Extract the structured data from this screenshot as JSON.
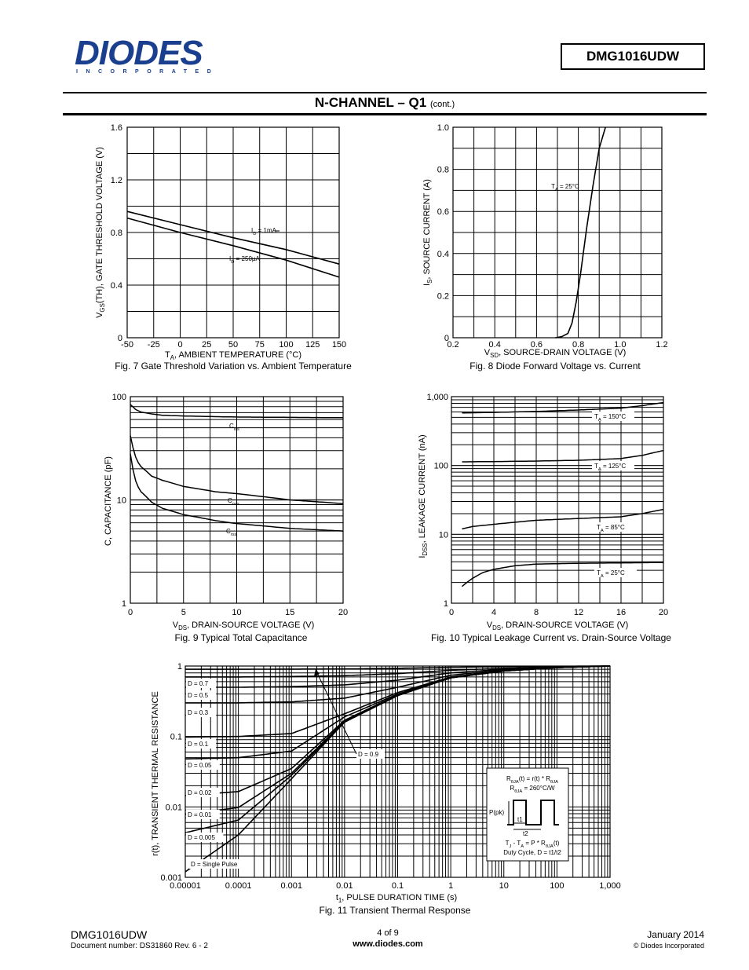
{
  "header": {
    "logo_text": "DIODES",
    "logo_sub": "INCORPORATED",
    "part_number": "DMG1016UDW"
  },
  "section": {
    "title": "N-CHANNEL – Q1",
    "suffix": "(cont.)"
  },
  "footer": {
    "part": "DMG1016UDW",
    "document": "Document number: DS31860 Rev. 6 - 2",
    "page": "4 of 9",
    "website": "www.diodes.com",
    "date": "January 2014",
    "copyright": "© Diodes Incorporated"
  },
  "chart_data": [
    {
      "id": "fig7",
      "type": "line",
      "caption": "Fig. 7 Gate Threshold Variation vs. Ambient Temperature",
      "xlabel": "T_A, AMBIENT TEMPERATURE (°C)",
      "ylabel": "V_GS(TH), GATE THRESHOLD VOLTAGE (V)",
      "xlim": [
        -50,
        150
      ],
      "ylim": [
        0,
        1.6
      ],
      "x_ticks": [
        "-50",
        "-25",
        "0",
        "25",
        "50",
        "75",
        "100",
        "125",
        "150"
      ],
      "y_ticks": [
        "0",
        "0.4",
        "0.8",
        "1.2",
        "1.6"
      ],
      "series": [
        {
          "name": "I_D = 1mA",
          "x": [
            -50,
            0,
            50,
            100,
            150
          ],
          "y": [
            0.96,
            0.86,
            0.76,
            0.67,
            0.56
          ]
        },
        {
          "name": "I_D = 250µA",
          "x": [
            -50,
            0,
            50,
            100,
            150
          ],
          "y": [
            0.91,
            0.8,
            0.7,
            0.59,
            0.46
          ]
        }
      ]
    },
    {
      "id": "fig8",
      "type": "line",
      "caption": "Fig. 8 Diode Forward Voltage vs. Current",
      "xlabel": "V_SD, SOURCE-DRAIN VOLTAGE (V)",
      "ylabel": "I_S, SOURCE CURRENT (A)",
      "xlim": [
        0.2,
        1.2
      ],
      "ylim": [
        0,
        1.0
      ],
      "x_ticks": [
        "0.2",
        "0.4",
        "0.6",
        "0.8",
        "1.0",
        "1.2"
      ],
      "y_ticks": [
        "0",
        "0.2",
        "0.4",
        "0.6",
        "0.8",
        "1.0"
      ],
      "series": [
        {
          "name": "T_A = 25°C",
          "x": [
            0.69,
            0.72,
            0.75,
            0.77,
            0.79,
            0.81,
            0.84,
            0.87,
            0.9,
            0.93
          ],
          "y": [
            0.0,
            0.005,
            0.02,
            0.07,
            0.17,
            0.3,
            0.52,
            0.72,
            0.9,
            1.0
          ]
        }
      ]
    },
    {
      "id": "fig9",
      "type": "line",
      "caption": "Fig. 9 Typical Total Capacitance",
      "xlabel": "V_DS, DRAIN-SOURCE VOLTAGE (V)",
      "ylabel": "C, CAPACITANCE (pF)",
      "xscale": "linear",
      "yscale": "log",
      "xlim": [
        0,
        20
      ],
      "ylim": [
        1,
        100
      ],
      "x_ticks": [
        "0",
        "5",
        "10",
        "15",
        "20"
      ],
      "y_ticks": [
        "1",
        "10",
        "100"
      ],
      "series": [
        {
          "name": "C_iss",
          "x": [
            0,
            0.5,
            1,
            2,
            3,
            5,
            8,
            10,
            15,
            20
          ],
          "y": [
            84,
            75,
            71,
            68,
            66,
            65,
            64,
            63.5,
            63,
            62.5
          ]
        },
        {
          "name": "C_oss",
          "x": [
            0,
            0.3,
            0.6,
            1,
            2,
            3,
            5,
            8,
            10,
            15,
            20
          ],
          "y": [
            42,
            30,
            24,
            21,
            17,
            15.5,
            13.5,
            12,
            11.5,
            10,
            9.2
          ]
        },
        {
          "name": "C_rss",
          "x": [
            0,
            0.3,
            0.6,
            1,
            2,
            3,
            5,
            8,
            10,
            15,
            20
          ],
          "y": [
            28,
            18,
            14,
            12,
            9.5,
            8.3,
            7.2,
            6.3,
            5.9,
            5.3,
            5.0
          ]
        }
      ]
    },
    {
      "id": "fig10",
      "type": "line",
      "caption": "Fig. 10 Typical Leakage Current vs. Drain-Source Voltage",
      "xlabel": "V_DS, DRAIN-SOURCE VOLTAGE (V)",
      "ylabel": "I_DSS, LEAKAGE CURRENT (nA)",
      "xscale": "linear",
      "yscale": "log",
      "xlim": [
        0,
        20
      ],
      "ylim": [
        1,
        1000
      ],
      "x_ticks": [
        "0",
        "4",
        "8",
        "12",
        "16",
        "20"
      ],
      "y_ticks": [
        "1",
        "10",
        "100",
        "1,000"
      ],
      "series": [
        {
          "name": "T_A = 150°C",
          "x": [
            1,
            4,
            8,
            12,
            16,
            18,
            20
          ],
          "y": [
            580,
            590,
            610,
            640,
            680,
            740,
            820
          ]
        },
        {
          "name": "T_A = 125°C",
          "x": [
            1,
            4,
            8,
            12,
            16,
            18,
            20
          ],
          "y": [
            113,
            114,
            116,
            119,
            126,
            140,
            165
          ]
        },
        {
          "name": "T_A = 85°C",
          "x": [
            1,
            2,
            4,
            6,
            8,
            12,
            16,
            18,
            20
          ],
          "y": [
            12,
            13,
            14,
            15,
            16,
            17,
            18,
            20,
            23
          ]
        },
        {
          "name": "T_A = 25°C",
          "x": [
            1,
            2,
            3,
            4,
            6,
            8,
            12,
            16,
            20
          ],
          "y": [
            1.75,
            2.3,
            2.8,
            3.1,
            3.5,
            3.7,
            3.8,
            3.85,
            3.9
          ]
        }
      ]
    },
    {
      "id": "fig11",
      "type": "line",
      "caption": "Fig. 11 Transient Thermal Response",
      "xlabel": "t_1, PULSE DURATION TIME (s)",
      "ylabel": "r(t), TRANSIENT THERMAL RESISTANCE",
      "xscale": "log",
      "yscale": "log",
      "xlim": [
        1e-05,
        1000
      ],
      "ylim": [
        0.001,
        1
      ],
      "x_ticks": [
        "0.00001",
        "0.0001",
        "0.001",
        "0.01",
        "0.1",
        "1",
        "10",
        "100",
        "1,000"
      ],
      "y_ticks": [
        "0.001",
        "0.01",
        "0.1",
        "1"
      ],
      "series": [
        {
          "name": "D = Single Pulse",
          "x": [
            1e-05,
            0.0001,
            0.001,
            0.01,
            0.1,
            1,
            10,
            100,
            1000
          ],
          "y": [
            0.0012,
            0.004,
            0.025,
            0.16,
            0.38,
            0.68,
            0.85,
            0.95,
            1.0
          ]
        },
        {
          "name": "D = 0.005",
          "x": [
            1e-05,
            0.0001,
            0.001,
            0.01,
            0.1,
            1,
            10,
            100,
            1000
          ],
          "y": [
            0.0043,
            0.0065,
            0.028,
            0.16,
            0.38,
            0.68,
            0.85,
            0.95,
            1.0
          ]
        },
        {
          "name": "D = 0.01",
          "x": [
            1e-05,
            0.0001,
            0.001,
            0.01,
            0.1,
            1,
            10,
            100,
            1000
          ],
          "y": [
            0.0078,
            0.0098,
            0.03,
            0.165,
            0.385,
            0.68,
            0.85,
            0.95,
            1.0
          ]
        },
        {
          "name": "D = 0.02",
          "x": [
            1e-05,
            0.0001,
            0.001,
            0.01,
            0.1,
            1,
            10,
            100,
            1000
          ],
          "y": [
            0.0145,
            0.0165,
            0.035,
            0.17,
            0.39,
            0.685,
            0.855,
            0.95,
            1.0
          ]
        },
        {
          "name": "D = 0.05",
          "x": [
            1e-05,
            0.0001,
            0.001,
            0.01,
            0.1,
            1,
            10,
            100,
            1000
          ],
          "y": [
            0.048,
            0.05,
            0.062,
            0.19,
            0.4,
            0.69,
            0.86,
            0.955,
            1.0
          ]
        },
        {
          "name": "D = 0.1",
          "x": [
            1e-05,
            0.0001,
            0.001,
            0.01,
            0.1,
            1,
            10,
            100,
            1000
          ],
          "y": [
            0.098,
            0.1,
            0.11,
            0.21,
            0.42,
            0.7,
            0.86,
            0.955,
            1.0
          ]
        },
        {
          "name": "D = 0.3",
          "x": [
            1e-05,
            0.0001,
            0.001,
            0.01,
            0.1,
            1,
            10,
            100,
            1000
          ],
          "y": [
            0.3,
            0.3,
            0.31,
            0.35,
            0.5,
            0.74,
            0.88,
            0.96,
            1.0
          ]
        },
        {
          "name": "D = 0.5",
          "x": [
            1e-05,
            0.0001,
            0.001,
            0.01,
            0.1,
            1,
            10,
            100,
            1000
          ],
          "y": [
            0.5,
            0.5,
            0.51,
            0.54,
            0.63,
            0.8,
            0.9,
            0.965,
            1.0
          ]
        },
        {
          "name": "D = 0.7",
          "x": [
            1e-05,
            0.0001,
            0.001,
            0.01,
            0.1,
            1,
            10,
            100,
            1000
          ],
          "y": [
            0.7,
            0.7,
            0.71,
            0.73,
            0.78,
            0.87,
            0.93,
            0.975,
            1.0
          ]
        },
        {
          "name": "D = 0.9",
          "x": [
            1e-05,
            0.0001,
            0.001,
            0.01,
            0.1,
            1,
            10,
            100,
            1000
          ],
          "y": [
            0.9,
            0.9,
            0.905,
            0.91,
            0.93,
            0.96,
            0.98,
            0.99,
            1.0
          ]
        }
      ],
      "inset": {
        "eq1": "R_θJA(t) = r(t) * R_θJA",
        "eq2": "R_θJA = 260°C/W",
        "ppk": "P(pk)",
        "t1": "t1",
        "t2": "t2",
        "eq3": "T_J - T_A = P * R_θJA(t)",
        "eq4": "Duty Cycle, D = t1/t2"
      }
    }
  ]
}
